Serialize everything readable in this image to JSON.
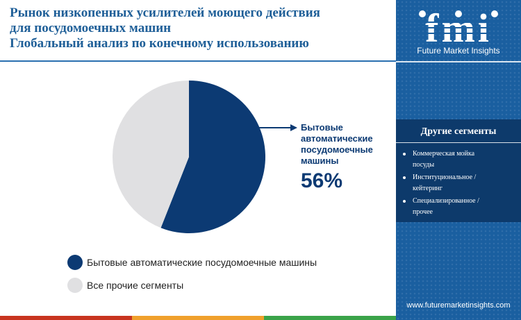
{
  "header": {
    "title_lines": [
      "Рынок низкопенных усилителей моющего действия",
      "для посудомоечных машин",
      "Глобальный анализ по конечному использованию"
    ]
  },
  "chart_data": {
    "type": "pie",
    "title": "",
    "slices": [
      {
        "label": "Бытовые автоматические посудомоечные машины",
        "value": 56,
        "color": "#0c3a73"
      },
      {
        "label": "Все прочие сегменты",
        "value": 44,
        "color": "#e0e0e2"
      }
    ],
    "start_angle_deg": 0,
    "direction": "clockwise",
    "legend_position": "bottom-left",
    "callout": {
      "label_lines": [
        "Бытовые",
        "автоматические",
        "посудомоечные",
        "машины"
      ],
      "value_text": "56%",
      "target": "Бытовые автоматические посудомоечные машины"
    }
  },
  "legend": {
    "items": [
      {
        "label": "Бытовые автоматические посудомоечные машины",
        "color": "#0c3a73"
      },
      {
        "label": "Все прочие сегменты",
        "color": "#e0e0e2"
      }
    ]
  },
  "sidebar": {
    "logo_text": "fmi",
    "logo_caption": "Future Market Insights",
    "segments_title": "Другие сегменты",
    "segments": [
      {
        "line1": "Коммерческая мойка",
        "line2": "посуды"
      },
      {
        "line1": "Институциональное /",
        "line2": "кейтеринг"
      },
      {
        "line1": "Специализированное /",
        "line2": "прочее"
      }
    ],
    "website": "www.futuremarketinsights.com"
  },
  "colors": {
    "brand_blue": "#1a5fa0",
    "dark_navy": "#0c3a73",
    "title_blue": "#1f5f98",
    "light_gray": "#e0e0e2",
    "bar_red": "#c8341f",
    "bar_orange": "#f0a02c",
    "bar_green": "#3aa349"
  }
}
